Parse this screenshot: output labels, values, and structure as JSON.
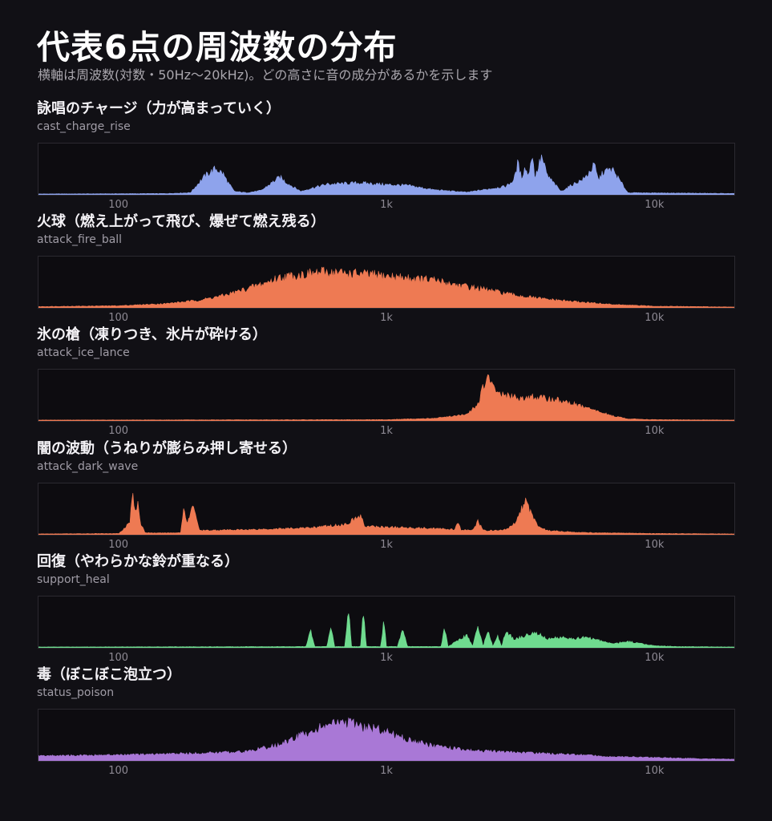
{
  "header": {
    "title": "代表6点の周波数の分布",
    "subtitle": "横軸は周波数(対数・50Hz〜20kHz)。どの高さに音の成分があるかを示します"
  },
  "chart_data": [
    {
      "type": "area",
      "title": "詠唱のチャージ（力が高まっていく）",
      "subtitle": "cast_charge_rise",
      "xscale": "log",
      "xlim": [
        50,
        20000
      ],
      "ylim": [
        0,
        1
      ],
      "x_ticks": [
        {
          "value": 100,
          "label": "100"
        },
        {
          "value": 1000,
          "label": "1k"
        },
        {
          "value": 10000,
          "label": "10k"
        }
      ],
      "color": "#8ea3ec",
      "series": [
        {
          "x": [
            50,
            150,
            185,
            200,
            210,
            230,
            245,
            255,
            270,
            300,
            340,
            380,
            400,
            420,
            450,
            480,
            520,
            560,
            600,
            800,
            1000,
            1200,
            1500,
            2000,
            2800,
            3000,
            3100,
            3200,
            3300,
            3400,
            3500,
            3600,
            3800,
            4000,
            4500,
            5000,
            5500,
            6000,
            6200,
            6500,
            7000,
            8000,
            20000
          ],
          "y": [
            0.02,
            0.03,
            0.05,
            0.3,
            0.45,
            0.62,
            0.5,
            0.3,
            0.08,
            0.05,
            0.1,
            0.32,
            0.42,
            0.3,
            0.18,
            0.08,
            0.15,
            0.2,
            0.25,
            0.28,
            0.24,
            0.22,
            0.12,
            0.06,
            0.2,
            0.35,
            0.75,
            0.4,
            0.65,
            0.45,
            0.98,
            0.4,
            0.9,
            0.45,
            0.08,
            0.25,
            0.38,
            0.7,
            0.35,
            0.55,
            0.6,
            0.05,
            0.03
          ]
        }
      ]
    },
    {
      "type": "area",
      "title": "火球（燃え上がって飛び、爆ぜて燃え残る）",
      "subtitle": "attack_fire_ball",
      "xscale": "log",
      "xlim": [
        50,
        20000
      ],
      "ylim": [
        0,
        1
      ],
      "x_ticks": [
        {
          "value": 100,
          "label": "100"
        },
        {
          "value": 1000,
          "label": "1k"
        },
        {
          "value": 10000,
          "label": "10k"
        }
      ],
      "color": "#ee7a53",
      "series": [
        {
          "x": [
            50,
            100,
            150,
            200,
            250,
            300,
            350,
            400,
            500,
            600,
            700,
            800,
            1000,
            1500,
            2000,
            2500,
            3000,
            4000,
            5000,
            7000,
            10000,
            15000,
            20000
          ],
          "y": [
            0.03,
            0.05,
            0.1,
            0.18,
            0.3,
            0.45,
            0.58,
            0.72,
            0.8,
            0.85,
            0.82,
            0.8,
            0.75,
            0.65,
            0.5,
            0.4,
            0.3,
            0.2,
            0.15,
            0.08,
            0.04,
            0.03,
            0.02
          ]
        }
      ]
    },
    {
      "type": "area",
      "title": "氷の槍（凍りつき、氷片が砕ける）",
      "subtitle": "attack_ice_lance",
      "xscale": "log",
      "xlim": [
        50,
        20000
      ],
      "ylim": [
        0,
        1
      ],
      "x_ticks": [
        {
          "value": 100,
          "label": "100"
        },
        {
          "value": 1000,
          "label": "1k"
        },
        {
          "value": 10000,
          "label": "10k"
        }
      ],
      "color": "#ee7a53",
      "series": [
        {
          "x": [
            50,
            1000,
            1500,
            2000,
            2200,
            2300,
            2400,
            2500,
            2700,
            3000,
            3500,
            4000,
            4500,
            5000,
            6000,
            7000,
            8000,
            10000,
            20000
          ],
          "y": [
            0.02,
            0.03,
            0.06,
            0.15,
            0.4,
            0.8,
            1.0,
            0.8,
            0.62,
            0.55,
            0.56,
            0.52,
            0.48,
            0.4,
            0.25,
            0.12,
            0.05,
            0.03,
            0.02
          ]
        }
      ]
    },
    {
      "type": "area",
      "title": "闇の波動（うねりが膨らみ押し寄せる）",
      "subtitle": "attack_dark_wave",
      "xscale": "log",
      "xlim": [
        50,
        20000
      ],
      "ylim": [
        0,
        1
      ],
      "x_ticks": [
        {
          "value": 100,
          "label": "100"
        },
        {
          "value": 1000,
          "label": "1k"
        },
        {
          "value": 10000,
          "label": "10k"
        }
      ],
      "color": "#ee7a53",
      "series": [
        {
          "x": [
            50,
            100,
            110,
            112,
            115,
            118,
            120,
            125,
            140,
            170,
            175,
            180,
            190,
            200,
            300,
            500,
            700,
            800,
            830,
            1000,
            1500,
            1800,
            1850,
            1900,
            2100,
            2200,
            2300,
            2400,
            2600,
            2800,
            3000,
            3300,
            3700,
            4000,
            5000,
            7000,
            10000,
            20000
          ],
          "y": [
            0.02,
            0.03,
            0.3,
            1.0,
            0.5,
            0.85,
            0.3,
            0.05,
            0.04,
            0.05,
            0.68,
            0.25,
            0.72,
            0.1,
            0.12,
            0.16,
            0.24,
            0.45,
            0.2,
            0.18,
            0.15,
            0.12,
            0.28,
            0.12,
            0.1,
            0.32,
            0.1,
            0.1,
            0.1,
            0.12,
            0.25,
            0.8,
            0.2,
            0.1,
            0.06,
            0.04,
            0.03,
            0.02
          ]
        }
      ]
    },
    {
      "type": "area",
      "title": "回復（やわらかな鈴が重なる）",
      "subtitle": "support_heal",
      "xscale": "log",
      "xlim": [
        50,
        20000
      ],
      "ylim": [
        0,
        1
      ],
      "x_ticks": [
        {
          "value": 100,
          "label": "100"
        },
        {
          "value": 1000,
          "label": "1k"
        },
        {
          "value": 10000,
          "label": "10k"
        }
      ],
      "color": "#6fdb8f",
      "series": [
        {
          "x": [
            50,
            500,
            520,
            540,
            600,
            620,
            640,
            700,
            720,
            740,
            800,
            820,
            840,
            950,
            980,
            1000,
            1100,
            1150,
            1200,
            1600,
            1650,
            1700,
            2000,
            2100,
            2200,
            2300,
            2400,
            2500,
            2600,
            2700,
            2800,
            3000,
            3200,
            3500,
            3800,
            4000,
            4500,
            5000,
            5500,
            6000,
            7000,
            8000,
            10000,
            12000,
            20000
          ],
          "y": [
            0.02,
            0.03,
            0.4,
            0.03,
            0.03,
            0.5,
            0.03,
            0.03,
            1.0,
            0.03,
            0.03,
            0.9,
            0.03,
            0.03,
            0.65,
            0.03,
            0.03,
            0.45,
            0.03,
            0.03,
            0.5,
            0.03,
            0.3,
            0.03,
            0.5,
            0.03,
            0.45,
            0.03,
            0.3,
            0.03,
            0.4,
            0.2,
            0.25,
            0.35,
            0.3,
            0.2,
            0.25,
            0.2,
            0.25,
            0.2,
            0.1,
            0.15,
            0.05,
            0.03,
            0.02
          ]
        }
      ]
    },
    {
      "type": "area",
      "title": "毒（ぼこぼこ泡立つ）",
      "subtitle": "status_poison",
      "xscale": "log",
      "xlim": [
        50,
        20000
      ],
      "ylim": [
        0,
        1
      ],
      "x_ticks": [
        {
          "value": 100,
          "label": "100"
        },
        {
          "value": 1000,
          "label": "1k"
        },
        {
          "value": 10000,
          "label": "10k"
        }
      ],
      "color": "#a978d6",
      "series": [
        {
          "x": [
            50,
            100,
            200,
            300,
            400,
            500,
            600,
            700,
            800,
            1000,
            1200,
            1500,
            2000,
            3000,
            5000,
            7000,
            10000,
            15000,
            20000
          ],
          "y": [
            0.12,
            0.14,
            0.18,
            0.22,
            0.38,
            0.65,
            0.85,
            0.9,
            0.82,
            0.7,
            0.5,
            0.35,
            0.25,
            0.2,
            0.15,
            0.1,
            0.08,
            0.05,
            0.04
          ]
        }
      ]
    }
  ]
}
